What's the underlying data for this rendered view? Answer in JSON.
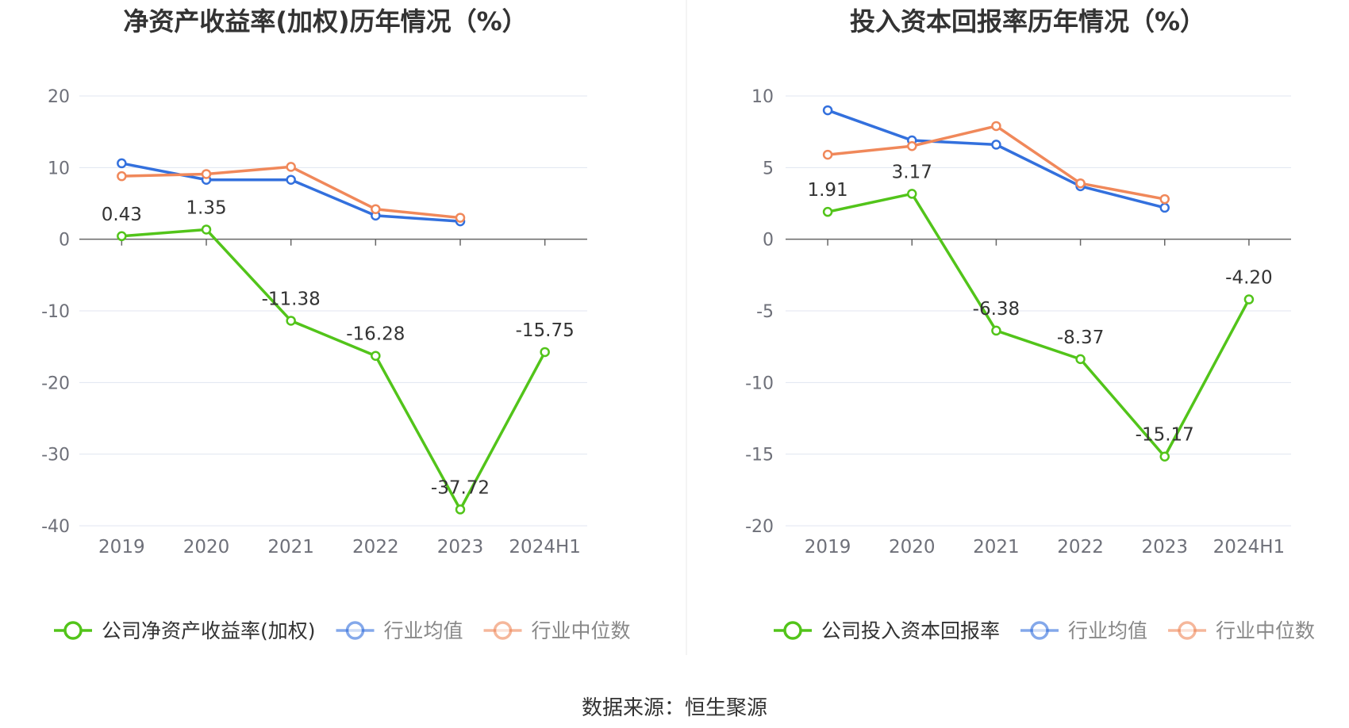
{
  "chart_data": [
    {
      "type": "line",
      "title": "净资产收益率(加权)历年情况（%）",
      "categories": [
        "2019",
        "2020",
        "2021",
        "2022",
        "2023",
        "2024H1"
      ],
      "ylim": [
        -40,
        20
      ],
      "yticks": [
        20,
        10,
        0,
        -10,
        -20,
        -30,
        -40
      ],
      "series": [
        {
          "name": "公司净资产收益率(加权)",
          "color": "#52c41a",
          "values": [
            0.43,
            1.35,
            -11.38,
            -16.28,
            -37.72,
            -15.75
          ],
          "labels": [
            "0.43",
            "1.35",
            "-11.38",
            "-16.28",
            "-37.72",
            "-15.75"
          ]
        },
        {
          "name": "行业均值",
          "color": "#3370dd",
          "values": [
            10.6,
            8.3,
            8.3,
            3.3,
            2.5,
            null
          ]
        },
        {
          "name": "行业中位数",
          "color": "#f0885a",
          "values": [
            8.8,
            9.1,
            10.1,
            4.2,
            3.0,
            null
          ]
        }
      ],
      "legend": [
        "公司净资产收益率(加权)",
        "行业均值",
        "行业中位数"
      ]
    },
    {
      "type": "line",
      "title": "投入资本回报率历年情况（%）",
      "categories": [
        "2019",
        "2020",
        "2021",
        "2022",
        "2023",
        "2024H1"
      ],
      "ylim": [
        -20,
        10
      ],
      "yticks": [
        10,
        5,
        0,
        -5,
        -10,
        -15,
        -20
      ],
      "series": [
        {
          "name": "公司投入资本回报率",
          "color": "#52c41a",
          "values": [
            1.91,
            3.17,
            -6.38,
            -8.37,
            -15.17,
            -4.2
          ],
          "labels": [
            "1.91",
            "3.17",
            "-6.38",
            "-8.37",
            "-15.17",
            "-4.20"
          ]
        },
        {
          "name": "行业均值",
          "color": "#3370dd",
          "values": [
            9.0,
            6.9,
            6.6,
            3.7,
            2.2,
            null
          ]
        },
        {
          "name": "行业中位数",
          "color": "#f0885a",
          "values": [
            5.9,
            6.5,
            7.9,
            3.9,
            2.8,
            null
          ]
        }
      ],
      "legend": [
        "公司投入资本回报率",
        "行业均值",
        "行业中位数"
      ]
    }
  ],
  "source": "数据来源：恒生聚源"
}
